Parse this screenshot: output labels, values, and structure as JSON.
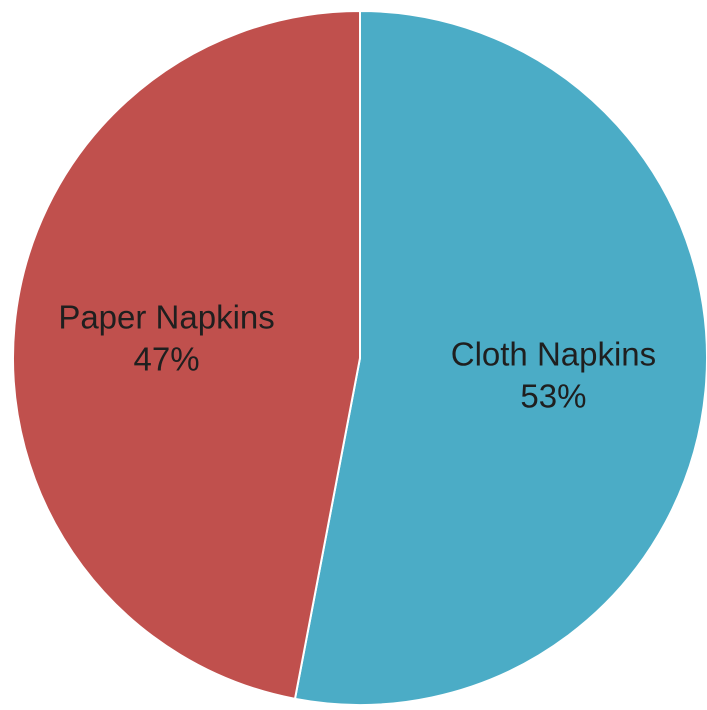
{
  "chart_data": {
    "type": "pie",
    "slices": [
      {
        "label": "Cloth Napkins",
        "value": 53,
        "value_label": "53%",
        "color": "#4BACC6"
      },
      {
        "label": "Paper Napkins",
        "value": 47,
        "value_label": "47%",
        "color": "#C0504D"
      }
    ],
    "start": "12 o'clock",
    "direction": "clockwise",
    "data_labels": "inside, category name and percentage"
  }
}
